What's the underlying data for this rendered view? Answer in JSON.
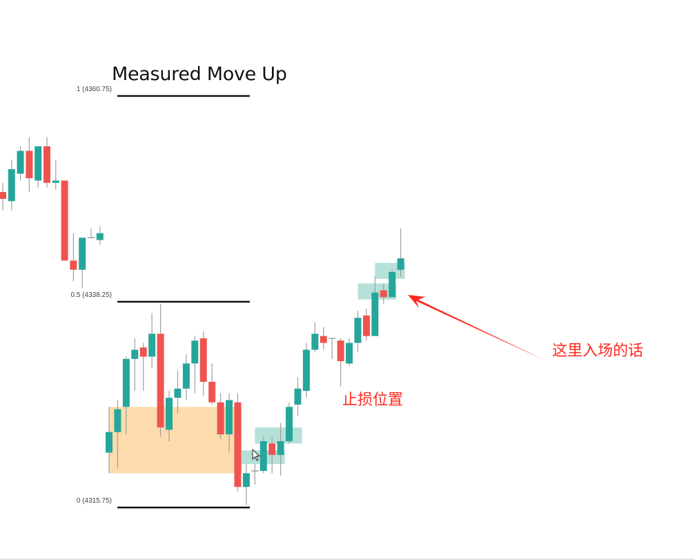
{
  "chart_data": {
    "type": "candlestick",
    "title": "Measured Move Up",
    "colors": {
      "up": "#26a69a",
      "down": "#ef5350",
      "wick": "#9e9e9e",
      "zone_orange": "#fdd9a8",
      "zone_teal": "#a8dcd2",
      "annotation": "#ff2a1f",
      "fib_line": "#111111"
    },
    "fib_levels": [
      {
        "ratio": "1",
        "price": 4360.75,
        "label": "1 (4360.75)"
      },
      {
        "ratio": "0.5",
        "price": 4338.25,
        "label": "0.5 (4338.25)"
      },
      {
        "ratio": "0",
        "price": 4315.75,
        "label": "0 (4315.75)"
      }
    ],
    "candles": [
      {
        "o": 4350.25,
        "h": 4351.25,
        "l": 4348.25,
        "c": 4349.5
      },
      {
        "o": 4349.25,
        "h": 4353.75,
        "l": 4348.25,
        "c": 4352.75
      },
      {
        "o": 4352.25,
        "h": 4355.25,
        "l": 4351.5,
        "c": 4354.75
      },
      {
        "o": 4354.75,
        "h": 4356.25,
        "l": 4350.25,
        "c": 4351.75
      },
      {
        "o": 4351.5,
        "h": 4355.25,
        "l": 4350.75,
        "c": 4355.25
      },
      {
        "o": 4355.25,
        "h": 4356.25,
        "l": 4350.75,
        "c": 4351.25
      },
      {
        "o": 4351.25,
        "h": 4353.75,
        "l": 4350.5,
        "c": 4351.5
      },
      {
        "o": 4351.5,
        "h": 4351.5,
        "l": 4342.75,
        "c": 4342.75
      },
      {
        "o": 4342.75,
        "h": 4345.75,
        "l": 4340.5,
        "c": 4341.75
      },
      {
        "o": 4341.75,
        "h": 4345.25,
        "l": 4339.75,
        "c": 4345.25
      },
      {
        "o": 4345.25,
        "h": 4346.25,
        "l": 4345.25,
        "c": 4345.25
      },
      {
        "o": 4345.0,
        "h": 4346.5,
        "l": 4344.5,
        "c": 4345.75
      },
      {
        "o": 4321.75,
        "h": 4326.75,
        "l": 4319.5,
        "c": 4324.0
      },
      {
        "o": 4324.0,
        "h": 4327.5,
        "l": 4320.0,
        "c": 4326.5
      },
      {
        "o": 4326.75,
        "h": 4332.25,
        "l": 4323.75,
        "c": 4332.0
      },
      {
        "o": 4332.0,
        "h": 4334.25,
        "l": 4328.5,
        "c": 4333.0
      },
      {
        "o": 4333.25,
        "h": 4333.75,
        "l": 4328.5,
        "c": 4332.25
      },
      {
        "o": 4332.25,
        "h": 4337.0,
        "l": 4331.0,
        "c": 4334.75
      },
      {
        "o": 4334.75,
        "h": 4338.0,
        "l": 4323.5,
        "c": 4324.5
      },
      {
        "o": 4324.25,
        "h": 4328.5,
        "l": 4323.0,
        "c": 4327.75
      },
      {
        "o": 4327.75,
        "h": 4330.75,
        "l": 4326.0,
        "c": 4328.75
      },
      {
        "o": 4328.75,
        "h": 4332.5,
        "l": 4327.5,
        "c": 4331.5
      },
      {
        "o": 4331.5,
        "h": 4334.5,
        "l": 4328.25,
        "c": 4334.0
      },
      {
        "o": 4334.25,
        "h": 4335.0,
        "l": 4328.0,
        "c": 4329.5
      },
      {
        "o": 4329.5,
        "h": 4331.5,
        "l": 4327.0,
        "c": 4327.25
      },
      {
        "o": 4327.25,
        "h": 4328.25,
        "l": 4323.25,
        "c": 4323.75
      },
      {
        "o": 4323.75,
        "h": 4328.25,
        "l": 4321.75,
        "c": 4327.5
      },
      {
        "o": 4327.25,
        "h": 4328.25,
        "l": 4317.5,
        "c": 4318.0
      },
      {
        "o": 4318.0,
        "h": 4320.5,
        "l": 4316.0,
        "c": 4319.5
      },
      {
        "o": 4319.75,
        "h": 4320.5,
        "l": 4318.25,
        "c": 4319.75
      },
      {
        "o": 4319.75,
        "h": 4323.5,
        "l": 4319.5,
        "c": 4323.0
      },
      {
        "o": 4322.75,
        "h": 4323.5,
        "l": 4319.5,
        "c": 4321.5
      },
      {
        "o": 4321.5,
        "h": 4325.0,
        "l": 4319.25,
        "c": 4323.0
      },
      {
        "o": 4323.0,
        "h": 4327.25,
        "l": 4322.75,
        "c": 4326.75
      },
      {
        "o": 4327.0,
        "h": 4330.0,
        "l": 4325.75,
        "c": 4328.75
      },
      {
        "o": 4328.5,
        "h": 4333.75,
        "l": 4327.75,
        "c": 4333.0
      },
      {
        "o": 4333.0,
        "h": 4336.0,
        "l": 4332.75,
        "c": 4334.75
      },
      {
        "o": 4334.5,
        "h": 4335.5,
        "l": 4333.0,
        "c": 4333.75
      },
      {
        "o": 4334.25,
        "h": 4334.25,
        "l": 4332.0,
        "c": 4334.25
      },
      {
        "o": 4334.0,
        "h": 4334.25,
        "l": 4329.0,
        "c": 4331.75
      },
      {
        "o": 4331.5,
        "h": 4334.25,
        "l": 4331.25,
        "c": 4333.75
      },
      {
        "o": 4333.75,
        "h": 4337.25,
        "l": 4332.75,
        "c": 4336.5
      },
      {
        "o": 4336.75,
        "h": 4337.5,
        "l": 4334.0,
        "c": 4334.5
      },
      {
        "o": 4334.5,
        "h": 4341.0,
        "l": 4334.5,
        "c": 4339.25
      },
      {
        "o": 4339.5,
        "h": 4340.25,
        "l": 4338.0,
        "c": 4338.75
      },
      {
        "o": 4338.75,
        "h": 4341.75,
        "l": 4338.75,
        "c": 4341.5
      },
      {
        "o": 4341.75,
        "h": 4346.25,
        "l": 4341.0,
        "c": 4343.0
      }
    ],
    "zones": [
      {
        "color": "orange",
        "from_candle": 13,
        "to_candle": 28,
        "price_low": 4319.5,
        "price_high": 4326.75
      },
      {
        "color": "teal",
        "from_candle": 28,
        "to_candle": 33,
        "price_low": 4320.5,
        "price_high": 4322.0
      },
      {
        "color": "teal",
        "from_candle": 30,
        "to_candle": 35,
        "price_low": 4322.75,
        "price_high": 4324.5
      },
      {
        "color": "teal",
        "from_candle": 42,
        "to_candle": 46,
        "price_low": 4338.5,
        "price_high": 4340.25
      },
      {
        "color": "teal",
        "from_candle": 44,
        "to_candle": 47,
        "price_low": 4340.75,
        "price_high": 4342.5
      }
    ],
    "annotations": {
      "stop_loss": "止损位置",
      "entry": "这里入场的话"
    }
  }
}
